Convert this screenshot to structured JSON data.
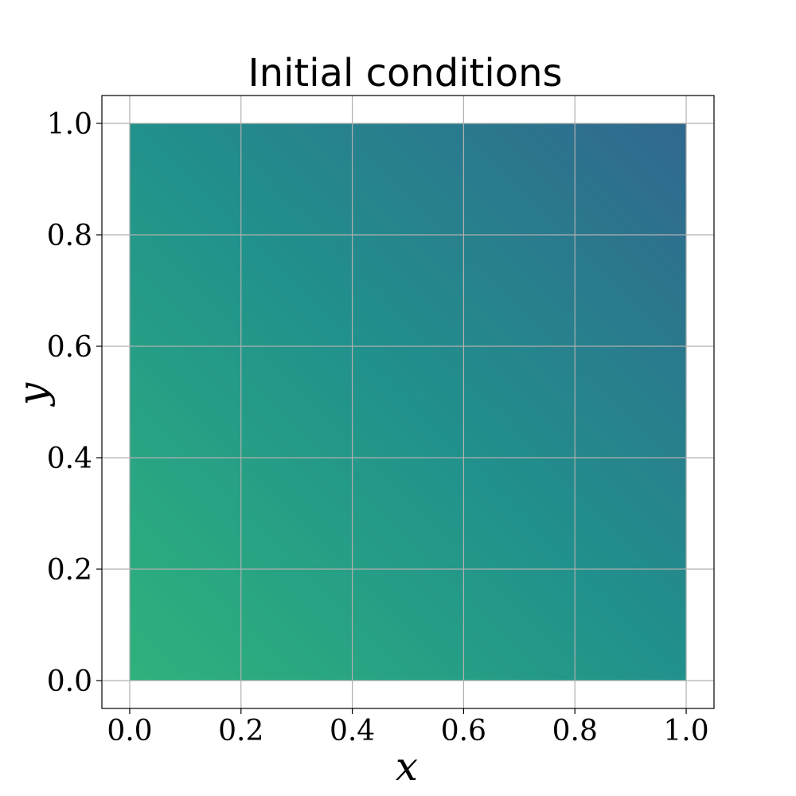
{
  "chart_data": {
    "type": "heatmap",
    "title": "Initial conditions",
    "xlabel": "x",
    "ylabel": "y",
    "xlim": [
      -0.05,
      1.05
    ],
    "ylim": [
      -0.05,
      1.05
    ],
    "data_extent": {
      "x": [
        0.0,
        1.0
      ],
      "y": [
        0.0,
        1.0
      ]
    },
    "xticks": [
      0.0,
      0.2,
      0.4,
      0.6,
      0.8,
      1.0
    ],
    "xtick_labels": [
      "0.0",
      "0.2",
      "0.4",
      "0.6",
      "0.8",
      "1.0"
    ],
    "yticks": [
      0.0,
      0.2,
      0.4,
      0.6,
      0.8,
      1.0
    ],
    "ytick_labels": [
      "0.0",
      "0.2",
      "0.4",
      "0.6",
      "0.8",
      "1.0"
    ],
    "grid": true,
    "colormap": "viridis",
    "field_colors": {
      "x0_y0": "#2eb27c",
      "x1_y0": "#21918c",
      "x0_y1": "#228c8d",
      "x1_y1": "#31688e"
    }
  }
}
